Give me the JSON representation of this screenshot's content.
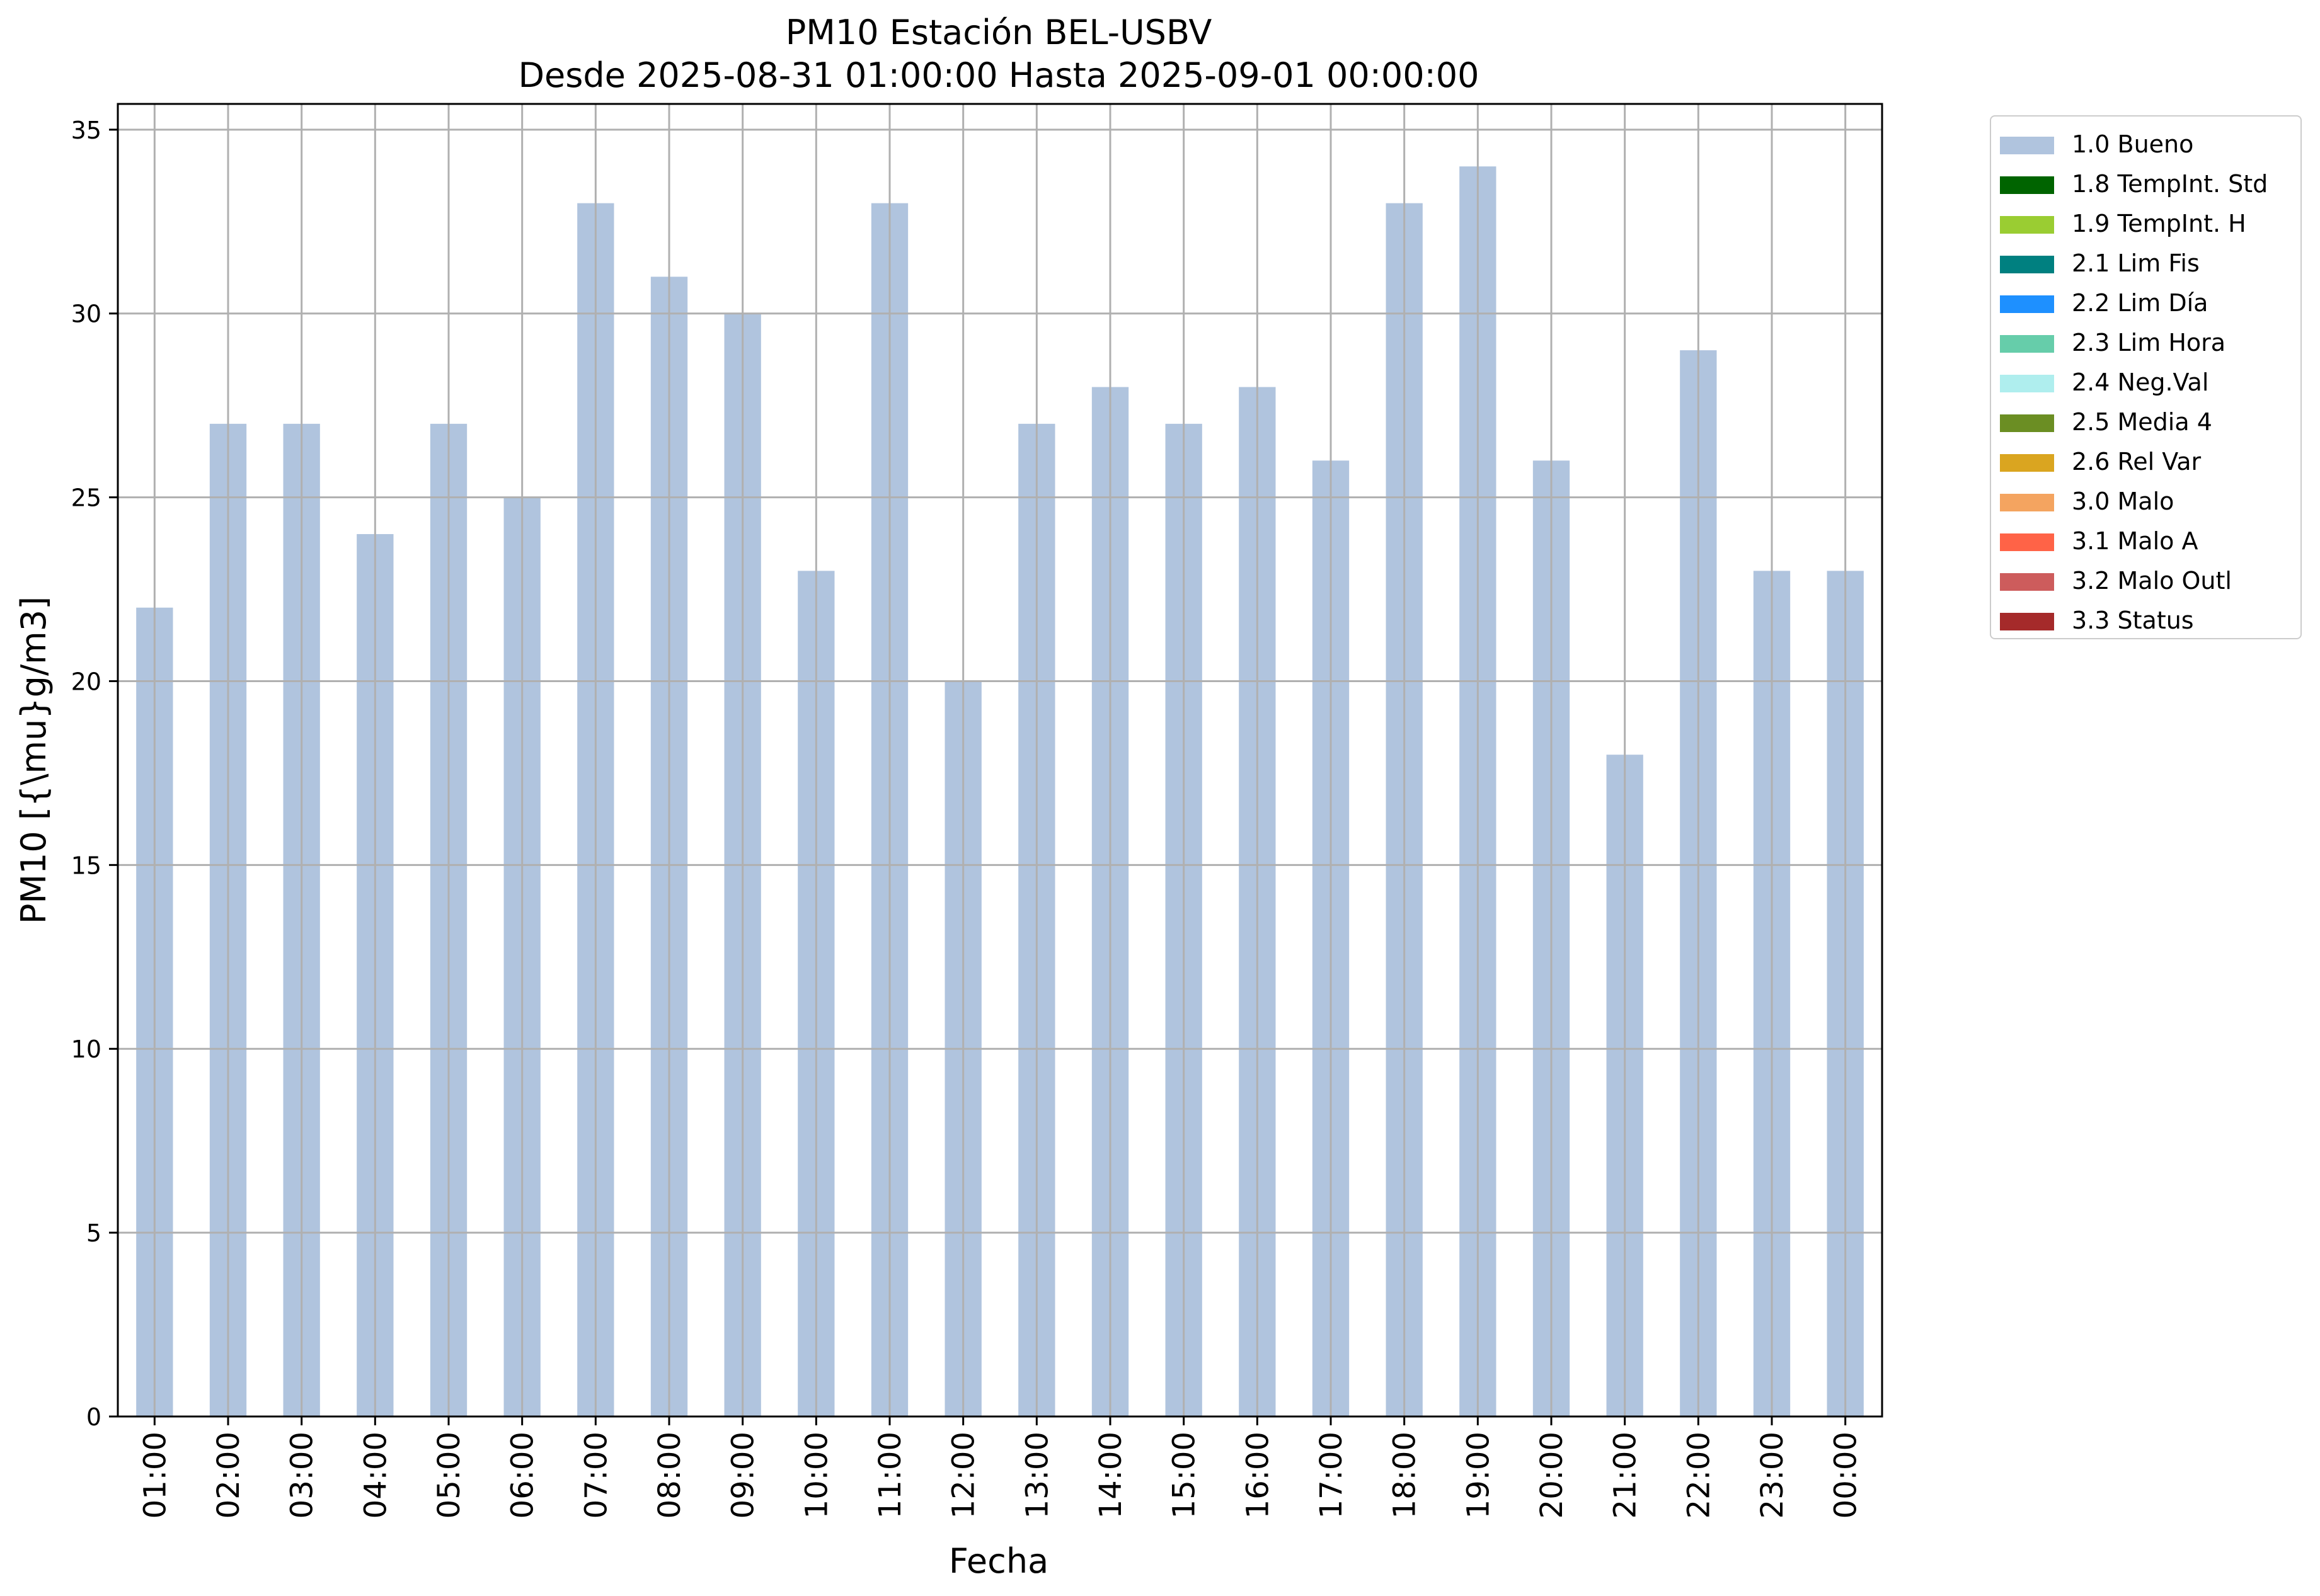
{
  "chart_data": {
    "type": "bar",
    "title": "PM10 Estación BEL-USBV",
    "subtitle": "Desde 2025-08-31 01:00:00 Hasta 2025-09-01 00:00:00",
    "xlabel": "Fecha",
    "ylabel": "PM10 [{\\mu}g/m3]",
    "categories": [
      "01:00",
      "02:00",
      "03:00",
      "04:00",
      "05:00",
      "06:00",
      "07:00",
      "08:00",
      "09:00",
      "10:00",
      "11:00",
      "12:00",
      "13:00",
      "14:00",
      "15:00",
      "16:00",
      "17:00",
      "18:00",
      "19:00",
      "20:00",
      "21:00",
      "22:00",
      "23:00",
      "00:00"
    ],
    "values": [
      22,
      27,
      27,
      24,
      27,
      25,
      33,
      31,
      30,
      23,
      33,
      20,
      27,
      28,
      27,
      28,
      26,
      33,
      34,
      26,
      18,
      29,
      23,
      23
    ],
    "ylim": [
      0,
      35.7
    ],
    "yticks": [
      0,
      5,
      10,
      15,
      20,
      25,
      30,
      35
    ],
    "grid": true,
    "bar_color": "#b0c4de",
    "legend_position": "outside-top-right",
    "legend": [
      {
        "label": "1.0 Bueno",
        "color": "#b0c4de"
      },
      {
        "label": "1.8 TempInt. Std",
        "color": "#006400"
      },
      {
        "label": "1.9 TempInt. H",
        "color": "#9acd32"
      },
      {
        "label": "2.1 Lim Fis",
        "color": "#008080"
      },
      {
        "label": "2.2 Lim Día",
        "color": "#1e90ff"
      },
      {
        "label": "2.3 Lim Hora",
        "color": "#66cdaa"
      },
      {
        "label": "2.4 Neg.Val",
        "color": "#afeeee"
      },
      {
        "label": "2.5 Media 4",
        "color": "#6b8e23"
      },
      {
        "label": "2.6 Rel Var",
        "color": "#daa520"
      },
      {
        "label": "3.0 Malo",
        "color": "#f4a460"
      },
      {
        "label": "3.1 Malo A",
        "color": "#ff6347"
      },
      {
        "label": "3.2 Malo Outl",
        "color": "#cd5c5c"
      },
      {
        "label": "3.3 Status",
        "color": "#a52a2a"
      }
    ]
  }
}
